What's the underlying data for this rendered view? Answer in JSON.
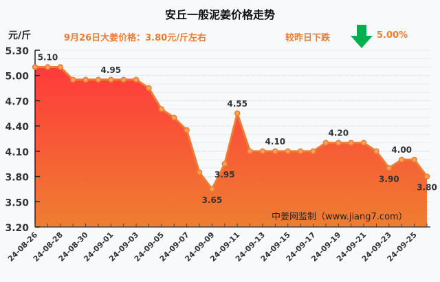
{
  "header": {
    "title": "安丘一般泥姜价格走势",
    "unit": "元/斤",
    "price_note": "9月26日大姜价格：3.80元/斤左右",
    "change_label": "较昨日下跌",
    "change_icon": "down-arrow-icon",
    "change_pct": "5.00%",
    "arrow_color": "#00b050",
    "accent_color": "#ee7d32"
  },
  "watermark": "中姜网监制（www.jiang7.com）",
  "chart_data": {
    "type": "area",
    "title": "安丘一般泥姜价格走势",
    "ylabel": "元/斤",
    "xlabel": "",
    "ylim": [
      3.2,
      5.3
    ],
    "yticks": [
      "5.30",
      "5.00",
      "4.70",
      "4.40",
      "4.10",
      "3.80",
      "3.50",
      "3.20"
    ],
    "x": [
      "24-08-26",
      "24-08-27",
      "24-08-28",
      "24-08-29",
      "24-08-30",
      "24-08-31",
      "24-09-01",
      "24-09-02",
      "24-09-03",
      "24-09-04",
      "24-09-05",
      "24-09-06",
      "24-09-07",
      "24-09-08",
      "24-09-09",
      "24-09-10",
      "24-09-11",
      "24-09-12",
      "24-09-13",
      "24-09-14",
      "24-09-15",
      "24-09-16",
      "24-09-17",
      "24-09-18",
      "24-09-19",
      "24-09-20",
      "24-09-21",
      "24-09-22",
      "24-09-23",
      "24-09-24",
      "24-09-25",
      "24-09-26"
    ],
    "xtick_labels": [
      "24-08-26",
      "24-08-28",
      "24-08-30",
      "24-09-01",
      "24-09-03",
      "24-09-05",
      "24-09-07",
      "24-09-09",
      "24-09-11",
      "24-09-13",
      "24-09-15",
      "24-09-17",
      "24-09-19",
      "24-09-21",
      "24-09-23",
      "24-09-25"
    ],
    "series": [
      {
        "name": "安丘一般泥姜",
        "values": [
          5.1,
          5.1,
          5.1,
          4.95,
          4.95,
          4.95,
          4.95,
          4.95,
          4.95,
          4.85,
          4.6,
          4.5,
          4.35,
          3.85,
          3.65,
          3.95,
          4.55,
          4.1,
          4.1,
          4.1,
          4.1,
          4.1,
          4.1,
          4.2,
          4.2,
          4.2,
          4.2,
          4.1,
          3.9,
          4.0,
          4.0,
          3.8
        ]
      }
    ],
    "data_labels": [
      {
        "index": 1,
        "text": "5.10"
      },
      {
        "index": 6,
        "text": "4.95"
      },
      {
        "index": 14,
        "text": "3.65"
      },
      {
        "index": 15,
        "text": "3.95"
      },
      {
        "index": 16,
        "text": "4.55"
      },
      {
        "index": 19,
        "text": "4.10"
      },
      {
        "index": 24,
        "text": "4.20"
      },
      {
        "index": 28,
        "text": "3.90"
      },
      {
        "index": 29,
        "text": "4.00"
      },
      {
        "index": 31,
        "text": "3.80"
      }
    ],
    "grid": true,
    "legend": "none",
    "colors": {
      "line": "#ee7d32",
      "fill_top": "#ff3b3b",
      "fill_bottom": "#ee7d32"
    }
  }
}
